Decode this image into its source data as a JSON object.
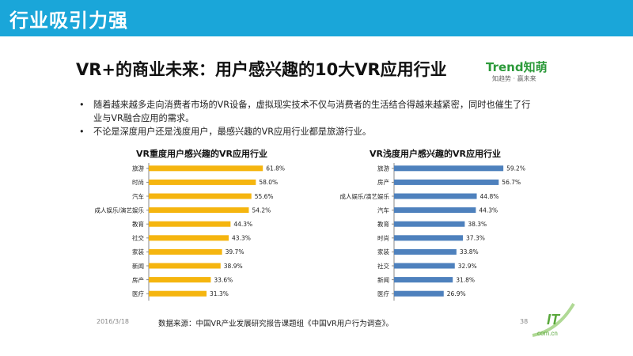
{
  "header": {
    "title": "行业吸引力强"
  },
  "main_title": "VR+的商业未来：用户感兴趣的10大VR应用行业",
  "logo": {
    "name": "Trend知萌",
    "tagline": "知趋势 · 赢未来"
  },
  "bullets": [
    {
      "marker": "•",
      "text": "随着越来越多走向消费者市场的VR设备，虚拟现实技术不仅与消费者的生活结合得越来越紧密，同时也催生了行业与VR融合应用的需求。"
    },
    {
      "marker": "•",
      "text": "不论是深度用户还是浅度用户，最感兴趣的VR应用行业都是旅游行业。"
    }
  ],
  "colors": {
    "header": "#1aa6d9",
    "bar_left": "#f5b50f",
    "bar_right": "#4e81bd"
  },
  "chart_data": [
    {
      "type": "bar",
      "orientation": "horizontal",
      "title": "VR重度用户感兴趣的VR应用行业",
      "categories": [
        "旅游",
        "时尚",
        "汽车",
        "成人娱乐/演艺娱乐",
        "教育",
        "社交",
        "家装",
        "新闻",
        "房产",
        "医疗"
      ],
      "values": [
        61.8,
        58.0,
        55.6,
        54.2,
        44.3,
        43.3,
        39.7,
        38.9,
        33.6,
        31.3
      ],
      "labels": [
        "61.8%",
        "58.0%",
        "55.6%",
        "54.2%",
        "44.3%",
        "43.3%",
        "39.7%",
        "38.9%",
        "33.6%",
        "31.3%"
      ],
      "unit": "%",
      "xlim": [
        0,
        75
      ]
    },
    {
      "type": "bar",
      "orientation": "horizontal",
      "title": "VR浅度用户感兴趣的VR应用行业",
      "categories": [
        "旅游",
        "房产",
        "成人娱乐/演艺娱乐",
        "汽车",
        "教育",
        "时尚",
        "家装",
        "社交",
        "新闻",
        "医疗"
      ],
      "values": [
        59.2,
        56.7,
        44.8,
        44.3,
        38.3,
        37.3,
        33.8,
        32.9,
        31.8,
        26.9
      ],
      "labels": [
        "59.2%",
        "56.7%",
        "44.8%",
        "44.3%",
        "38.3%",
        "37.3%",
        "33.8%",
        "32.9%",
        "31.8%",
        "26.9%"
      ],
      "unit": "%",
      "xlim": [
        0,
        75
      ]
    }
  ],
  "footer": {
    "date": "2016/3/18",
    "source": "数据来源：中国VR产业发展研究报告课题组《中国VR用户行为调查》。",
    "page": "38",
    "corner_logo": "IT",
    "corner_sub": "com.cn"
  }
}
